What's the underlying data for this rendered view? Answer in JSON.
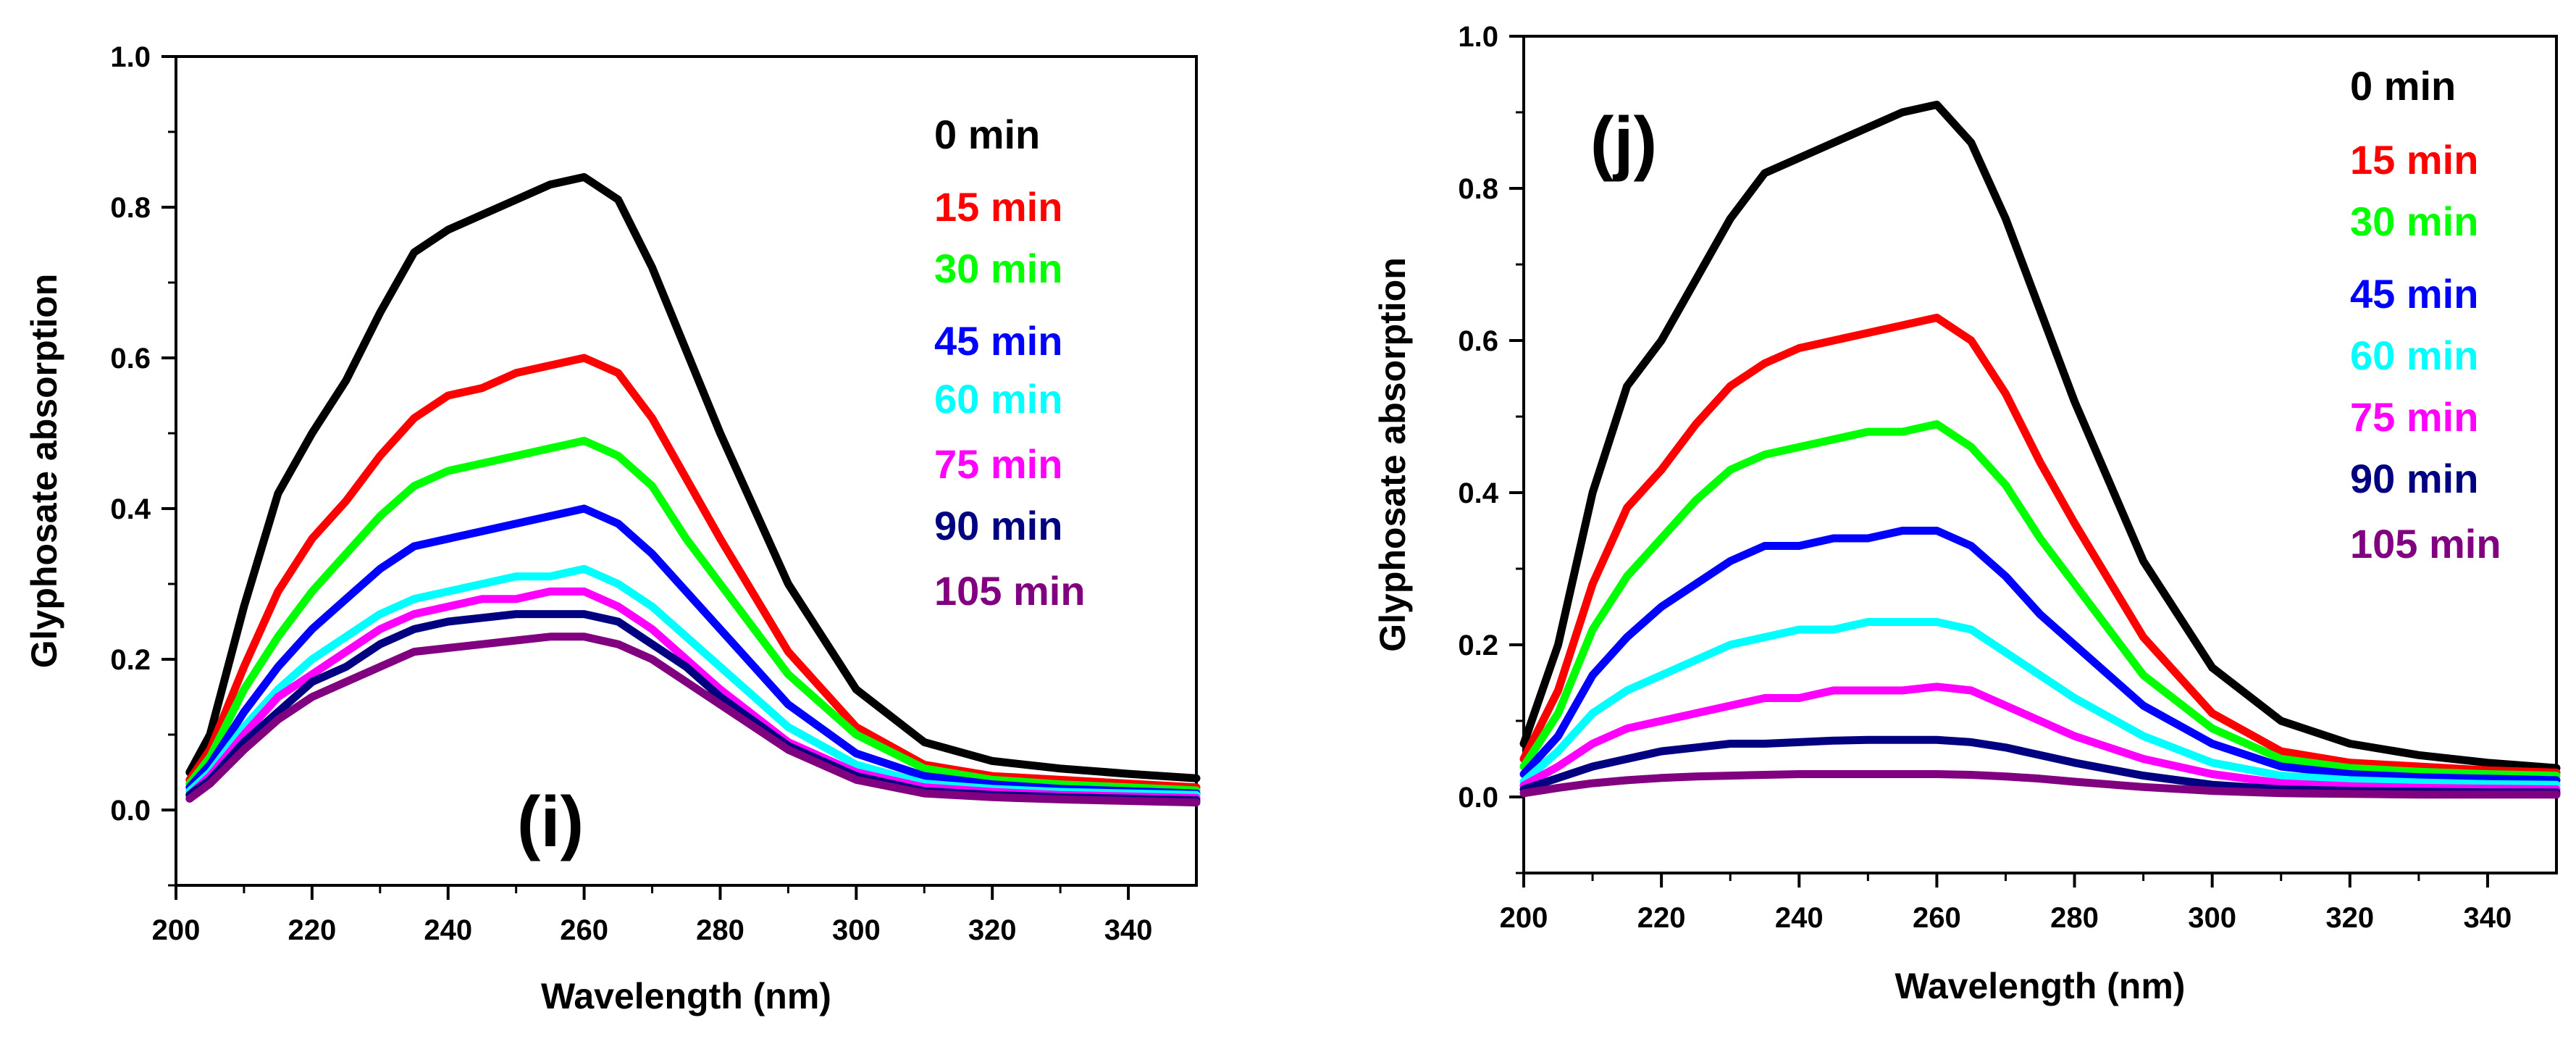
{
  "chart_data": [
    {
      "type": "line",
      "panel_label": "(i)",
      "xlabel": "Wavelength (nm)",
      "ylabel": "Glyphosate absorption",
      "xlim": [
        200,
        350
      ],
      "ylim": [
        -0.1,
        1.0
      ],
      "xticks": [
        200,
        220,
        240,
        260,
        280,
        300,
        320,
        340
      ],
      "xtick_labels": [
        "200",
        "220",
        "240",
        "260",
        "280",
        "300",
        "320",
        "340"
      ],
      "yticks": [
        0.0,
        0.2,
        0.4,
        0.6,
        0.8,
        1.0
      ],
      "ytick_labels": [
        "0.0",
        "0.2",
        "0.4",
        "0.6",
        "0.8",
        "1.0"
      ],
      "legend_position": "top-right",
      "x": [
        202,
        205,
        210,
        215,
        220,
        225,
        230,
        235,
        240,
        245,
        250,
        255,
        260,
        265,
        270,
        275,
        280,
        290,
        300,
        310,
        320,
        330,
        340,
        350
      ],
      "series": [
        {
          "name": "0 min",
          "color": "#000000",
          "values": [
            0.05,
            0.1,
            0.27,
            0.42,
            0.5,
            0.57,
            0.66,
            0.74,
            0.77,
            0.79,
            0.81,
            0.83,
            0.84,
            0.81,
            0.72,
            0.61,
            0.5,
            0.3,
            0.16,
            0.09,
            0.065,
            0.055,
            0.048,
            0.042
          ]
        },
        {
          "name": "15 min",
          "color": "#ff0000",
          "values": [
            0.04,
            0.08,
            0.19,
            0.29,
            0.36,
            0.41,
            0.47,
            0.52,
            0.55,
            0.56,
            0.58,
            0.59,
            0.6,
            0.58,
            0.52,
            0.44,
            0.36,
            0.21,
            0.11,
            0.06,
            0.045,
            0.04,
            0.035,
            0.03
          ]
        },
        {
          "name": "30 min",
          "color": "#00ff00",
          "values": [
            0.035,
            0.07,
            0.16,
            0.23,
            0.29,
            0.34,
            0.39,
            0.43,
            0.45,
            0.46,
            0.47,
            0.48,
            0.49,
            0.47,
            0.43,
            0.36,
            0.3,
            0.18,
            0.1,
            0.055,
            0.04,
            0.034,
            0.03,
            0.026
          ]
        },
        {
          "name": "45 min",
          "color": "#0000ff",
          "values": [
            0.03,
            0.06,
            0.13,
            0.19,
            0.24,
            0.28,
            0.32,
            0.35,
            0.36,
            0.37,
            0.38,
            0.39,
            0.4,
            0.38,
            0.34,
            0.29,
            0.24,
            0.14,
            0.075,
            0.045,
            0.034,
            0.028,
            0.025,
            0.022
          ]
        },
        {
          "name": "60 min",
          "color": "#00ffff",
          "values": [
            0.025,
            0.05,
            0.11,
            0.16,
            0.2,
            0.23,
            0.26,
            0.28,
            0.29,
            0.3,
            0.31,
            0.31,
            0.32,
            0.3,
            0.27,
            0.23,
            0.19,
            0.11,
            0.06,
            0.035,
            0.028,
            0.024,
            0.022,
            0.02
          ]
        },
        {
          "name": "75 min",
          "color": "#ff00ff",
          "values": [
            0.02,
            0.045,
            0.1,
            0.15,
            0.18,
            0.21,
            0.24,
            0.26,
            0.27,
            0.28,
            0.28,
            0.29,
            0.29,
            0.27,
            0.24,
            0.2,
            0.16,
            0.09,
            0.05,
            0.03,
            0.024,
            0.02,
            0.018,
            0.016
          ]
        },
        {
          "name": "90 min",
          "color": "#000080",
          "values": [
            0.02,
            0.04,
            0.09,
            0.13,
            0.17,
            0.19,
            0.22,
            0.24,
            0.25,
            0.255,
            0.26,
            0.26,
            0.26,
            0.25,
            0.22,
            0.19,
            0.15,
            0.085,
            0.045,
            0.025,
            0.02,
            0.017,
            0.015,
            0.013
          ]
        },
        {
          "name": "105 min",
          "color": "#800080",
          "values": [
            0.015,
            0.035,
            0.08,
            0.12,
            0.15,
            0.17,
            0.19,
            0.21,
            0.215,
            0.22,
            0.225,
            0.23,
            0.23,
            0.22,
            0.2,
            0.17,
            0.14,
            0.08,
            0.04,
            0.022,
            0.017,
            0.014,
            0.012,
            0.01
          ]
        }
      ]
    },
    {
      "type": "line",
      "panel_label": "(j)",
      "xlabel": "Wavelength (nm)",
      "ylabel": "Glyphosate absorption",
      "xlim": [
        200,
        350
      ],
      "ylim": [
        -0.1,
        1.0
      ],
      "xticks": [
        200,
        220,
        240,
        260,
        280,
        300,
        320,
        340
      ],
      "xtick_labels": [
        "200",
        "220",
        "240",
        "260",
        "280",
        "300",
        "320",
        "340"
      ],
      "yticks": [
        0.0,
        0.2,
        0.4,
        0.6,
        0.8,
        1.0
      ],
      "ytick_labels": [
        "0.0",
        "0.2",
        "0.4",
        "0.6",
        "0.8",
        "1.0"
      ],
      "legend_position": "top-right",
      "x": [
        200,
        205,
        210,
        215,
        220,
        225,
        230,
        235,
        240,
        245,
        250,
        255,
        260,
        265,
        270,
        275,
        280,
        290,
        300,
        310,
        320,
        330,
        340,
        350
      ],
      "series": [
        {
          "name": "0 min",
          "color": "#000000",
          "values": [
            0.07,
            0.2,
            0.4,
            0.54,
            0.6,
            0.68,
            0.76,
            0.82,
            0.84,
            0.86,
            0.88,
            0.9,
            0.91,
            0.86,
            0.76,
            0.64,
            0.52,
            0.31,
            0.17,
            0.1,
            0.07,
            0.055,
            0.045,
            0.038
          ]
        },
        {
          "name": "15 min",
          "color": "#ff0000",
          "values": [
            0.05,
            0.14,
            0.28,
            0.38,
            0.43,
            0.49,
            0.54,
            0.57,
            0.59,
            0.6,
            0.61,
            0.62,
            0.63,
            0.6,
            0.53,
            0.44,
            0.36,
            0.21,
            0.11,
            0.06,
            0.045,
            0.04,
            0.035,
            0.032
          ]
        },
        {
          "name": "30 min",
          "color": "#00ff00",
          "values": [
            0.04,
            0.11,
            0.22,
            0.29,
            0.34,
            0.39,
            0.43,
            0.45,
            0.46,
            0.47,
            0.48,
            0.48,
            0.49,
            0.46,
            0.41,
            0.34,
            0.28,
            0.16,
            0.09,
            0.05,
            0.038,
            0.033,
            0.03,
            0.028
          ]
        },
        {
          "name": "45 min",
          "color": "#0000ff",
          "values": [
            0.03,
            0.08,
            0.16,
            0.21,
            0.25,
            0.28,
            0.31,
            0.33,
            0.33,
            0.34,
            0.34,
            0.35,
            0.35,
            0.33,
            0.29,
            0.24,
            0.2,
            0.12,
            0.07,
            0.04,
            0.03,
            0.026,
            0.024,
            0.022
          ]
        },
        {
          "name": "60 min",
          "color": "#00ffff",
          "values": [
            0.02,
            0.06,
            0.11,
            0.14,
            0.16,
            0.18,
            0.2,
            0.21,
            0.22,
            0.22,
            0.23,
            0.23,
            0.23,
            0.22,
            0.19,
            0.16,
            0.13,
            0.08,
            0.045,
            0.028,
            0.022,
            0.019,
            0.017,
            0.016
          ]
        },
        {
          "name": "75 min",
          "color": "#ff00ff",
          "values": [
            0.015,
            0.04,
            0.07,
            0.09,
            0.1,
            0.11,
            0.12,
            0.13,
            0.13,
            0.14,
            0.14,
            0.14,
            0.145,
            0.14,
            0.12,
            0.1,
            0.08,
            0.05,
            0.03,
            0.018,
            0.014,
            0.012,
            0.011,
            0.01
          ]
        },
        {
          "name": "90 min",
          "color": "#000080",
          "values": [
            0.01,
            0.025,
            0.04,
            0.05,
            0.06,
            0.065,
            0.07,
            0.07,
            0.072,
            0.074,
            0.075,
            0.075,
            0.075,
            0.072,
            0.065,
            0.055,
            0.045,
            0.028,
            0.016,
            0.01,
            0.008,
            0.007,
            0.006,
            0.006
          ]
        },
        {
          "name": "105 min",
          "color": "#800080",
          "values": [
            0.005,
            0.012,
            0.018,
            0.022,
            0.025,
            0.027,
            0.028,
            0.029,
            0.03,
            0.03,
            0.03,
            0.03,
            0.03,
            0.029,
            0.027,
            0.024,
            0.02,
            0.013,
            0.008,
            0.005,
            0.004,
            0.003,
            0.003,
            0.003
          ]
        }
      ]
    }
  ]
}
